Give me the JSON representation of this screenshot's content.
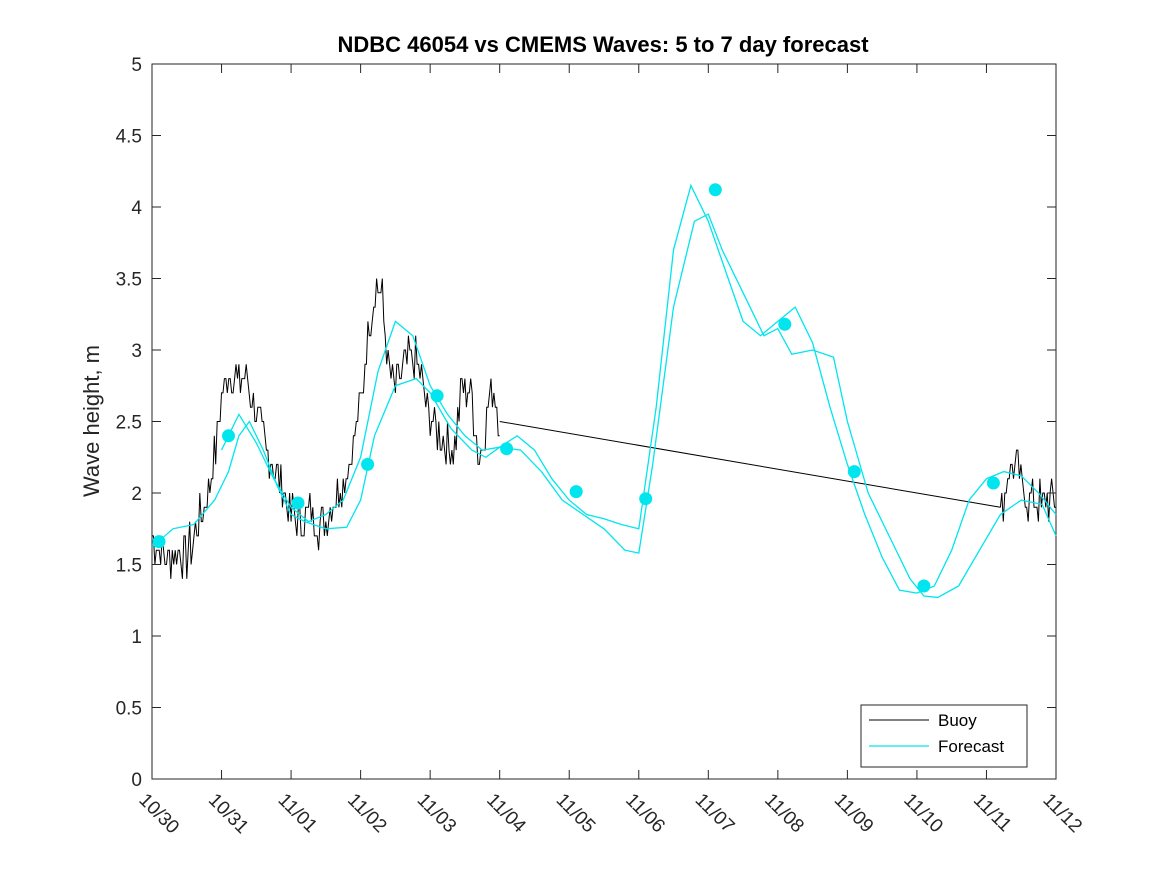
{
  "chart_data": {
    "type": "line",
    "title": "NDBC 46054 vs CMEMS Waves: 5 to 7 day forecast",
    "xlabel": "",
    "ylabel": "Wave height, m",
    "xlim": [
      0,
      13
    ],
    "ylim": [
      0,
      5
    ],
    "y_ticks": [
      0,
      0.5,
      1,
      1.5,
      2,
      2.5,
      3,
      3.5,
      4,
      4.5,
      5
    ],
    "y_tick_labels": [
      "0",
      "0.5",
      "1",
      "1.5",
      "2",
      "2.5",
      "3",
      "3.5",
      "4",
      "4.5",
      "5"
    ],
    "x_ticks": [
      0,
      1,
      2,
      3,
      4,
      5,
      6,
      7,
      8,
      9,
      10,
      11,
      12,
      13
    ],
    "x_tick_labels": [
      "10/30",
      "10/31",
      "11/01",
      "11/02",
      "11/03",
      "11/04",
      "11/05",
      "11/06",
      "11/07",
      "11/08",
      "11/09",
      "11/10",
      "11/11",
      "11/12"
    ],
    "legend": {
      "position": "bottom-right",
      "entries": [
        {
          "label": "Buoy",
          "color": "#000000"
        },
        {
          "label": "Forecast",
          "color": "#00e5ee"
        }
      ]
    },
    "colors": {
      "buoy": "#000000",
      "forecast": "#00e5ee"
    },
    "series": [
      {
        "name": "Buoy",
        "kind": "noisy",
        "x": [
          0,
          0.2,
          0.35,
          0.5,
          0.6,
          0.75,
          0.85,
          0.95,
          1.0,
          1.1,
          1.2,
          1.35,
          1.5,
          1.6,
          1.75,
          1.9,
          2.0,
          2.15,
          2.3,
          2.45,
          2.55,
          2.65,
          2.75,
          2.85,
          3.0,
          3.1,
          3.2,
          3.3,
          3.4,
          3.5,
          3.65,
          3.8,
          3.95,
          4.1,
          4.25,
          4.35,
          4.45,
          4.6,
          4.7,
          4.8,
          4.9,
          5.0
        ],
        "y": [
          1.7,
          1.55,
          1.6,
          1.55,
          1.7,
          1.9,
          2.1,
          2.45,
          2.7,
          2.85,
          2.8,
          2.8,
          2.6,
          2.35,
          2.2,
          2.0,
          1.85,
          1.8,
          1.85,
          1.75,
          1.9,
          2.0,
          2.1,
          2.25,
          2.6,
          3.1,
          3.45,
          3.4,
          2.9,
          2.7,
          2.9,
          2.95,
          2.6,
          2.45,
          2.35,
          2.3,
          2.75,
          2.7,
          2.2,
          2.5,
          2.75,
          2.5
        ]
      },
      {
        "name": "Buoy (gap)",
        "kind": "line",
        "x": [
          5.0,
          12.2
        ],
        "y": [
          2.5,
          1.9
        ]
      },
      {
        "name": "Buoy",
        "kind": "noisy",
        "x": [
          12.2,
          12.3,
          12.4,
          12.5,
          12.6,
          12.7,
          12.8,
          12.9,
          13.0
        ],
        "y": [
          1.8,
          2.15,
          2.2,
          2.05,
          1.95,
          2.0,
          1.9,
          1.95,
          1.95
        ]
      },
      {
        "name": "Forecast",
        "kind": "line",
        "x": [
          0,
          0.3,
          0.6,
          0.9,
          1.1,
          1.25,
          1.4,
          1.6,
          1.8,
          2.0,
          2.2,
          2.5,
          2.8,
          3.0,
          3.2,
          3.5,
          3.8,
          4.0,
          4.3,
          4.6,
          4.8,
          5.0,
          5.3,
          5.6,
          5.9,
          6.2,
          6.5,
          6.8,
          7.0,
          7.2,
          7.5,
          7.8,
          8.0,
          8.2,
          8.5,
          8.8,
          9.0,
          9.2,
          9.5,
          9.8,
          10.0,
          10.3,
          10.6,
          10.9,
          11.1,
          11.3,
          11.6,
          11.9,
          12.2,
          12.5,
          12.8,
          13.0
        ],
        "y": [
          1.62,
          1.75,
          1.78,
          1.95,
          2.15,
          2.4,
          2.5,
          2.3,
          2.05,
          1.85,
          1.8,
          1.75,
          1.76,
          1.95,
          2.4,
          2.75,
          2.8,
          2.7,
          2.45,
          2.3,
          2.25,
          2.32,
          2.3,
          2.15,
          1.95,
          1.85,
          1.75,
          1.6,
          1.58,
          2.2,
          3.3,
          3.9,
          3.95,
          3.7,
          3.4,
          3.1,
          3.15,
          2.97,
          3.0,
          2.95,
          2.5,
          2.0,
          1.7,
          1.4,
          1.28,
          1.27,
          1.35,
          1.6,
          1.85,
          1.95,
          1.92,
          1.7
        ]
      },
      {
        "name": "Forecast",
        "kind": "line",
        "x": [
          1.0,
          1.25,
          1.5,
          1.75,
          2.0,
          2.25,
          2.5,
          2.75,
          3.0,
          3.25,
          3.5,
          3.75,
          4.0,
          4.25,
          4.5,
          4.75,
          5.0,
          5.25,
          5.5,
          5.75,
          6.0,
          6.25,
          6.5,
          6.75,
          7.0,
          7.25,
          7.5,
          7.75,
          8.0,
          8.25,
          8.5,
          8.75,
          9.0,
          9.25,
          9.5,
          9.75,
          10.0,
          10.25,
          10.5,
          10.75,
          11.0,
          11.25,
          11.5,
          11.75,
          12.0,
          12.25,
          12.5,
          12.75,
          13.0
        ],
        "y": [
          2.3,
          2.55,
          2.35,
          2.1,
          1.9,
          1.8,
          1.85,
          1.95,
          2.25,
          2.85,
          3.2,
          3.1,
          2.75,
          2.55,
          2.4,
          2.3,
          2.32,
          2.4,
          2.3,
          2.1,
          1.95,
          1.85,
          1.82,
          1.78,
          1.75,
          2.6,
          3.7,
          4.15,
          3.9,
          3.55,
          3.2,
          3.1,
          3.2,
          3.3,
          3.05,
          2.6,
          2.2,
          1.85,
          1.55,
          1.32,
          1.3,
          1.35,
          1.6,
          1.95,
          2.1,
          2.15,
          2.12,
          2.0,
          1.85
        ]
      }
    ],
    "markers": {
      "name": "Forecast markers",
      "x": [
        0.1,
        1.1,
        2.1,
        3.1,
        4.1,
        5.1,
        6.1,
        7.1,
        8.1,
        9.1,
        10.1,
        11.1,
        12.1
      ],
      "y": [
        1.66,
        2.4,
        1.93,
        2.2,
        2.68,
        2.31,
        2.01,
        1.96,
        4.12,
        3.18,
        2.15,
        1.35,
        2.07
      ]
    }
  }
}
